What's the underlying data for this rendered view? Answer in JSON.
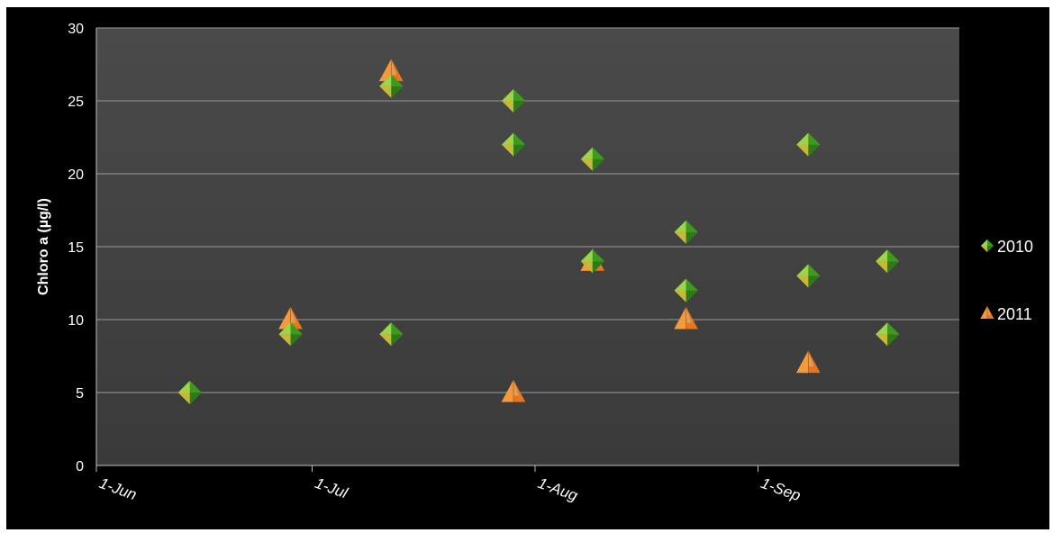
{
  "chart_data": {
    "type": "scatter",
    "title": "",
    "xlabel": "",
    "ylabel": "Chloro a (µg/l)",
    "ylim": [
      0,
      30
    ],
    "yticks": [
      0,
      5,
      10,
      15,
      20,
      25,
      30
    ],
    "xlim": [
      "2011-06-01",
      "2011-09-29"
    ],
    "xticks": [
      {
        "date": "2011-06-01",
        "label": "1-Jun"
      },
      {
        "date": "2011-07-01",
        "label": "1-Jul"
      },
      {
        "date": "2011-08-01",
        "label": "1-Aug"
      },
      {
        "date": "2011-09-01",
        "label": "1-Sep"
      }
    ],
    "grid": true,
    "legend_position": "right",
    "series": [
      {
        "name": "2010",
        "marker": "diamond",
        "color": "#4CAF2A",
        "points": [
          {
            "x": "2011-06-14",
            "y": 5
          },
          {
            "x": "2011-06-28",
            "y": 9
          },
          {
            "x": "2011-07-12",
            "y": 26
          },
          {
            "x": "2011-07-12",
            "y": 9
          },
          {
            "x": "2011-07-29",
            "y": 25
          },
          {
            "x": "2011-07-29",
            "y": 22
          },
          {
            "x": "2011-08-09",
            "y": 21
          },
          {
            "x": "2011-08-09",
            "y": 14
          },
          {
            "x": "2011-08-22",
            "y": 16
          },
          {
            "x": "2011-08-22",
            "y": 12
          },
          {
            "x": "2011-09-08",
            "y": 22
          },
          {
            "x": "2011-09-08",
            "y": 13
          },
          {
            "x": "2011-09-19",
            "y": 14
          },
          {
            "x": "2011-09-19",
            "y": 9
          }
        ]
      },
      {
        "name": "2011",
        "marker": "triangle",
        "color": "#E87A1E",
        "points": [
          {
            "x": "2011-06-28",
            "y": 10
          },
          {
            "x": "2011-07-12",
            "y": 27
          },
          {
            "x": "2011-07-29",
            "y": 5
          },
          {
            "x": "2011-08-09",
            "y": 14
          },
          {
            "x": "2011-08-22",
            "y": 10
          },
          {
            "x": "2011-09-08",
            "y": 7
          }
        ]
      }
    ]
  }
}
